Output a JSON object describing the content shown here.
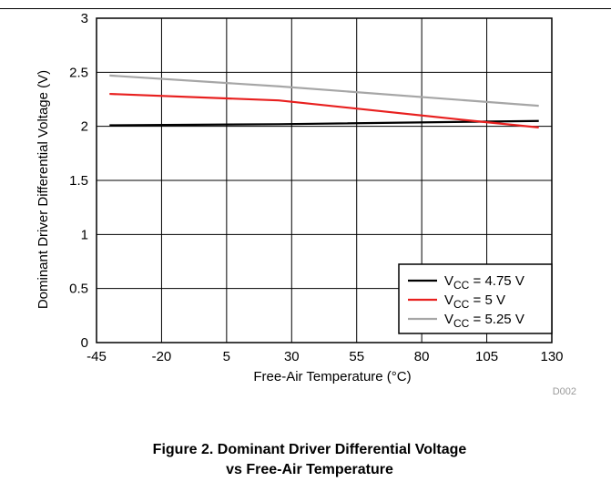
{
  "caption": {
    "line1": "Figure 2. Dominant Driver Differential Voltage",
    "line2": "vs Free-Air Temperature"
  },
  "chart_data": {
    "type": "line",
    "title": "",
    "xlabel": "Free-Air Temperature (°C)",
    "ylabel": "Dominant Driver Differential Voltage (V)",
    "xlim": [
      -45,
      130
    ],
    "ylim": [
      0,
      3
    ],
    "x_ticks": [
      -45,
      -20,
      5,
      30,
      55,
      80,
      105,
      130
    ],
    "y_ticks": [
      0,
      0.5,
      1,
      1.5,
      2,
      2.5,
      3
    ],
    "x_tick_labels": [
      "-45",
      "-20",
      "5",
      "30",
      "55",
      "80",
      "105",
      "130"
    ],
    "y_tick_labels": [
      "0",
      "0.5",
      "1",
      "1.5",
      "2",
      "2.5",
      "3"
    ],
    "grid": true,
    "legend_position": "bottom-right",
    "figure_id": "D002",
    "series": [
      {
        "name": "4.75 V",
        "legend_prefix": "V",
        "legend_sub": "CC",
        "legend_suffix": " = 4.75 V",
        "color": "#000000",
        "x": [
          -40,
          25,
          125
        ],
        "y": [
          2.01,
          2.02,
          2.05
        ]
      },
      {
        "name": "5 V",
        "legend_prefix": "V",
        "legend_sub": "CC",
        "legend_suffix": " = 5 V",
        "color": "#e8201f",
        "x": [
          -40,
          25,
          100,
          125
        ],
        "y": [
          2.3,
          2.24,
          2.05,
          1.99
        ]
      },
      {
        "name": "5.25 V",
        "legend_prefix": "V",
        "legend_sub": "CC",
        "legend_suffix": " = 5.25 V",
        "color": "#a6a6a6",
        "x": [
          -40,
          25,
          125
        ],
        "y": [
          2.47,
          2.37,
          2.19
        ]
      }
    ]
  }
}
